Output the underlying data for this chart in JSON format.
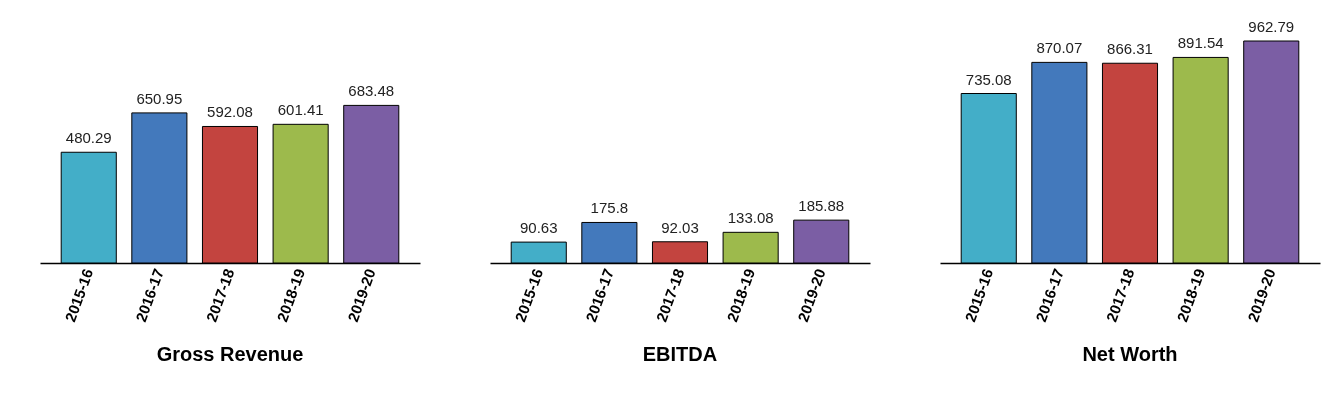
{
  "chart_data": [
    {
      "type": "bar",
      "title": "Gross Revenue",
      "categories": [
        "2015-16",
        "2016-17",
        "2017-18",
        "2018-19",
        "2019-20"
      ],
      "values": [
        480.29,
        650.95,
        592.08,
        601.41,
        683.48
      ],
      "colors": [
        "#43aec8",
        "#4379bc",
        "#c3443f",
        "#9dba4c",
        "#7b5ea4"
      ],
      "data_labels": true,
      "tick_labels": "x"
    },
    {
      "type": "bar",
      "title": "EBITDA",
      "categories": [
        "2015-16",
        "2016-17",
        "2017-18",
        "2018-19",
        "2019-20"
      ],
      "values": [
        90.63,
        175.8,
        92.03,
        133.08,
        185.88
      ],
      "colors": [
        "#43aec8",
        "#4379bc",
        "#c3443f",
        "#9dba4c",
        "#7b5ea4"
      ],
      "data_labels": true,
      "tick_labels": "x"
    },
    {
      "type": "bar",
      "title": "Net Worth",
      "categories": [
        "2015-16",
        "2016-17",
        "2017-18",
        "2018-19",
        "2019-20"
      ],
      "values": [
        735.08,
        870.07,
        866.31,
        891.54,
        962.79
      ],
      "colors": [
        "#43aec8",
        "#4379bc",
        "#c3443f",
        "#9dba4c",
        "#7b5ea4"
      ],
      "data_labels": true,
      "tick_labels": "x"
    }
  ]
}
